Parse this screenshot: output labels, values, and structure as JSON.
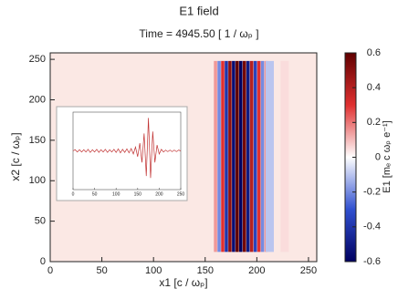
{
  "chart_data": {
    "type": "heatmap",
    "title": "E1 field",
    "subtitle": "Time = 4945.50 [ 1 / ωₚ ]",
    "x_label": "x1 [c / ωₚ]",
    "y_label": "x2 [c / ωₚ]",
    "colorbar_label": "E1 [mₑ c ωₚ e⁻¹]",
    "xlim": [
      0,
      258
    ],
    "ylim": [
      0,
      258
    ],
    "xticks": [
      0,
      50,
      100,
      150,
      200,
      250
    ],
    "yticks": [
      0,
      50,
      100,
      150,
      200,
      250
    ],
    "clim": [
      -0.6,
      0.6
    ],
    "cticks": [
      -0.6,
      -0.4,
      -0.2,
      0.0,
      0.2,
      0.4,
      0.6
    ],
    "stripes": {
      "x": [
        160,
        163.5,
        167,
        170.5,
        174,
        177.5,
        181,
        184.5,
        188,
        191.5,
        195,
        198.5,
        202,
        205.5,
        209,
        212.5,
        227
      ],
      "values": [
        0.15,
        -0.2,
        0.3,
        -0.4,
        0.5,
        -0.55,
        0.6,
        -0.6,
        0.55,
        -0.5,
        0.4,
        -0.35,
        0.3,
        -0.2,
        0.15,
        -0.1,
        0.05
      ],
      "y_extent": [
        12,
        248
      ]
    },
    "inset": {
      "type": "line",
      "xlim": [
        0,
        250
      ],
      "ylim": [
        -1,
        1
      ],
      "xticks": [
        0,
        50,
        100,
        150,
        200,
        250
      ],
      "color": "#c03030",
      "x": [
        0,
        5,
        10,
        15,
        20,
        25,
        30,
        35,
        40,
        45,
        50,
        55,
        60,
        65,
        70,
        75,
        80,
        85,
        90,
        95,
        100,
        105,
        110,
        115,
        120,
        125,
        130,
        135,
        140,
        145,
        150,
        155,
        160,
        165,
        170,
        175,
        180,
        185,
        190,
        195,
        200,
        205,
        210,
        215,
        220,
        225,
        230,
        235,
        240,
        245,
        250
      ],
      "values": [
        0,
        0.03,
        -0.03,
        0.03,
        -0.03,
        0.03,
        -0.03,
        0.04,
        -0.04,
        0.03,
        -0.03,
        0.04,
        -0.04,
        0.03,
        -0.03,
        0.04,
        -0.04,
        0.03,
        -0.03,
        0.04,
        -0.04,
        0.05,
        -0.05,
        0.04,
        -0.04,
        0.05,
        -0.05,
        0.06,
        -0.08,
        0.1,
        -0.15,
        0.2,
        -0.3,
        0.45,
        -0.65,
        0.85,
        -0.7,
        0.5,
        -0.3,
        0.15,
        -0.08,
        0.04,
        -0.03,
        0.02,
        -0.02,
        0.02,
        -0.02,
        0.02,
        -0.02,
        0.02,
        0
      ]
    }
  }
}
